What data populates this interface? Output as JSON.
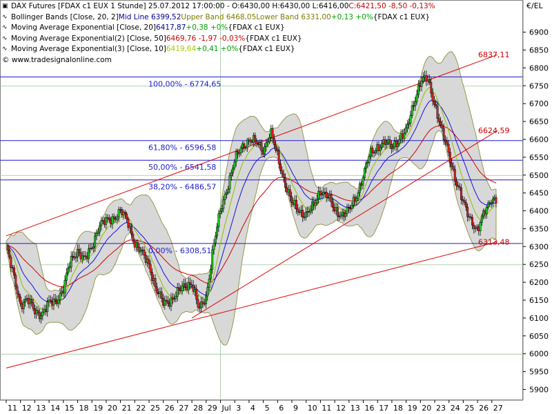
{
  "header": {
    "line1": {
      "name": "DAX Futures [FDAX c1 EUX  1 Stunde] 25.07.2012 17:00:00 - O:6430,00 H:6430,00 L:6416,00 ",
      "close": "C:6421,50 -8,50 -0,13%"
    },
    "line2": {
      "name": "Bollinger Bands [Close, 20, 2] ",
      "mid": "Mid Line 6399,52 ",
      "upper": "Upper Band 6468,05 ",
      "lower": "Lower Band 6331,00 ",
      "chg": "+0,13 +0% ",
      "inst": "{FDAX c1 EUX}"
    },
    "line3": {
      "name": "Moving Average Exponential [Close, 20] ",
      "val": "6417,87 ",
      "chg": "+0,38 +0% ",
      "inst": "{FDAX c1 EUX}"
    },
    "line4": {
      "name": "Moving Average Exponential(2) [Close, 50] ",
      "val": "6469,76 -1,97 -0,03% ",
      "inst": "{FDAX c1 EUX}"
    },
    "line5": {
      "name": "Moving Average Exponential(3) [Close, 10] ",
      "val": "6419,64 ",
      "chg": "+0,41 +0% ",
      "inst": "{FDAX c1 EUX}"
    },
    "copyright": "© www.tradesignalonline.com"
  },
  "chart_data": {
    "type": "candlestick",
    "instrument": "DAX Futures [FDAX c1 EUX 1 Stunde]",
    "currency_label": "€/EL",
    "ylim": [
      5870,
      6990
    ],
    "y_ticks": [
      5900,
      5950,
      6000,
      6050,
      6100,
      6150,
      6200,
      6250,
      6300,
      6350,
      6400,
      6450,
      6500,
      6550,
      6600,
      6650,
      6700,
      6750,
      6800,
      6850,
      6900
    ],
    "x_ticks": [
      "11",
      "12",
      "13",
      "14",
      "15",
      "18",
      "19",
      "20",
      "21",
      "22",
      "25",
      "26",
      "27",
      "28",
      "29",
      "Jul",
      "3",
      "4",
      "5",
      "6",
      "9",
      "10",
      "11",
      "12",
      "13",
      "16",
      "17",
      "18",
      "19",
      "20",
      "23",
      "24",
      "25",
      "26",
      "27"
    ],
    "highlight_tick": "Jul",
    "fibonacci_levels": [
      {
        "label": "100,00% - 6774,65",
        "value": 6774.65
      },
      {
        "label": "61,80% - 6596,58",
        "value": 6596.58
      },
      {
        "label": "50,00% - 6541,58",
        "value": 6541.58
      },
      {
        "label": "38,20% - 6486,57",
        "value": 6486.57
      },
      {
        "label": "0,00% - 6308,51",
        "value": 6308.51
      }
    ],
    "trendline_labels": [
      {
        "label": "6837,11",
        "value": 6837.11
      },
      {
        "label": "6624,59",
        "value": 6624.59
      },
      {
        "label": "6313,48",
        "value": 6313.48
      }
    ],
    "trendlines": [
      {
        "from": [
          0,
          6330
        ],
        "to": [
          34.4,
          6837.11
        ]
      },
      {
        "from": [
          13.0,
          6100
        ],
        "to": [
          34.4,
          6624.59
        ]
      },
      {
        "from": [
          0,
          5960
        ],
        "to": [
          34.4,
          6313.48
        ]
      }
    ],
    "price_waypoints": [
      [
        0,
        6300
      ],
      [
        0.5,
        6220
      ],
      [
        1,
        6140
      ],
      [
        1.5,
        6150
      ],
      [
        2,
        6120
      ],
      [
        2.5,
        6110
      ],
      [
        3,
        6140
      ],
      [
        3.5,
        6150
      ],
      [
        4,
        6180
      ],
      [
        4.5,
        6260
      ],
      [
        5,
        6290
      ],
      [
        5.5,
        6260
      ],
      [
        6,
        6300
      ],
      [
        6.5,
        6360
      ],
      [
        7,
        6370
      ],
      [
        7.5,
        6380
      ],
      [
        8,
        6400
      ],
      [
        8.5,
        6370
      ],
      [
        9,
        6310
      ],
      [
        9.5,
        6280
      ],
      [
        10,
        6250
      ],
      [
        10.5,
        6180
      ],
      [
        11,
        6140
      ],
      [
        11.5,
        6150
      ],
      [
        12,
        6170
      ],
      [
        12.5,
        6190
      ],
      [
        13,
        6200
      ],
      [
        13.5,
        6120
      ],
      [
        14,
        6160
      ],
      [
        14.5,
        6300
      ],
      [
        15,
        6400
      ],
      [
        15.5,
        6470
      ],
      [
        16,
        6540
      ],
      [
        16.5,
        6580
      ],
      [
        17,
        6600
      ],
      [
        17.5,
        6590
      ],
      [
        18,
        6570
      ],
      [
        18.5,
        6620
      ],
      [
        19,
        6550
      ],
      [
        19.5,
        6480
      ],
      [
        20,
        6420
      ],
      [
        20.5,
        6400
      ],
      [
        21,
        6390
      ],
      [
        21.5,
        6410
      ],
      [
        22,
        6460
      ],
      [
        22.5,
        6440
      ],
      [
        23,
        6400
      ],
      [
        23.5,
        6390
      ],
      [
        24,
        6400
      ],
      [
        24.5,
        6440
      ],
      [
        25,
        6500
      ],
      [
        25.5,
        6560
      ],
      [
        26,
        6580
      ],
      [
        26.5,
        6590
      ],
      [
        27,
        6580
      ],
      [
        27.5,
        6600
      ],
      [
        28,
        6620
      ],
      [
        28.5,
        6700
      ],
      [
        29,
        6760
      ],
      [
        29.5,
        6770
      ],
      [
        30,
        6700
      ],
      [
        30.5,
        6620
      ],
      [
        31,
        6560
      ],
      [
        31.5,
        6480
      ],
      [
        32,
        6420
      ],
      [
        32.5,
        6380
      ],
      [
        33,
        6340
      ],
      [
        33.5,
        6400
      ],
      [
        34,
        6440
      ],
      [
        34.3,
        6421.5
      ]
    ]
  }
}
